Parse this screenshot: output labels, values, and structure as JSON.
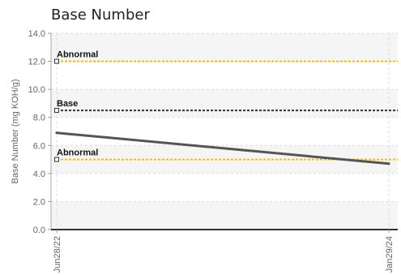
{
  "chart_data": {
    "type": "line",
    "title": "Base Number",
    "xlabel": "",
    "ylabel": "Base Number (mg KOH/g)",
    "ylim": [
      0,
      14
    ],
    "yticks": [
      "0.0",
      "2.0",
      "4.0",
      "6.0",
      "8.0",
      "10.0",
      "12.0",
      "14.0"
    ],
    "x_tick_labels": [
      "Jun28/22",
      "Jan29/24"
    ],
    "grid": true,
    "series": [
      {
        "x": [
          "Jun28/22",
          "Jan29/24"
        ],
        "values": [
          6.9,
          4.7
        ],
        "color": "#555555"
      }
    ],
    "reference_lines": [
      {
        "label": "Abnormal",
        "value": 12.0,
        "color": "#f2c200",
        "style": "dotted"
      },
      {
        "label": "Base",
        "value": 8.5,
        "color": "#333333",
        "style": "dotted"
      },
      {
        "label": "Abnormal",
        "value": 5.0,
        "color": "#f2c200",
        "style": "dotted"
      }
    ]
  }
}
